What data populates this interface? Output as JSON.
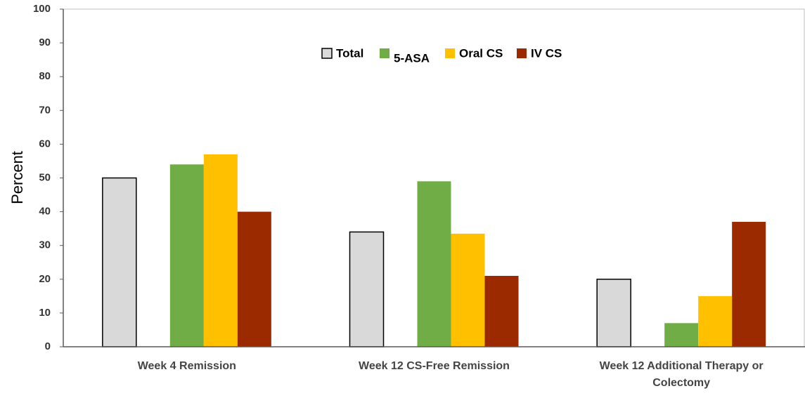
{
  "chart_data": {
    "type": "bar",
    "y_label": "Percent",
    "categories": [
      "Week 4 Remission",
      "Week 12 CS-Free Remission",
      "Week 12 Additional  Therapy or Colectomy"
    ],
    "series": [
      {
        "name": "Total",
        "color": "#d9d9d9",
        "values": [
          50,
          34,
          20
        ]
      },
      {
        "name": "5-ASA",
        "color": "#70ad47",
        "values": [
          54,
          49,
          7
        ]
      },
      {
        "name": "Oral CS",
        "color": "#ffc000",
        "values": [
          57,
          33.5,
          15
        ]
      },
      {
        "name": "IV CS",
        "color": "#9c2a00",
        "values": [
          40,
          21,
          37
        ]
      }
    ],
    "ylim": [
      0,
      100
    ],
    "yticks": [
      0,
      10,
      20,
      30,
      40,
      50,
      60,
      70,
      80,
      90,
      100
    ],
    "legend": "top",
    "grid": false
  }
}
